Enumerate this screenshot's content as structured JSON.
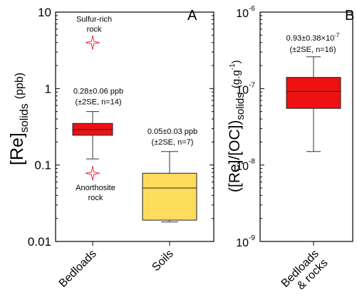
{
  "chart_data": [
    {
      "panel": "A",
      "type": "box",
      "y_scale": "log",
      "ylim": [
        0.01,
        10
      ],
      "yticks": [
        0.01,
        0.1,
        1,
        10
      ],
      "ytick_labels": [
        "0.01",
        "0.1",
        "1",
        "10"
      ],
      "ylabel": {
        "main": "[Re]",
        "sub": "solids",
        "unit": "(ppb)"
      },
      "categories": [
        "Bedloads",
        "Soils"
      ],
      "boxes": [
        {
          "category": "Bedloads",
          "color": "#ee1111",
          "whisker_low": 0.12,
          "q1": 0.245,
          "median": 0.29,
          "q3": 0.35,
          "whisker_high": 0.5,
          "annotation": [
            "0.28±0.06 ppb",
            "(±2SE, n=14)"
          ]
        },
        {
          "category": "Soils",
          "color": "#fddc5c",
          "whisker_low": 0.018,
          "q1": 0.019,
          "median": 0.05,
          "q3": 0.078,
          "whisker_high": 0.15,
          "annotation": [
            "0.05±0.03 ppb",
            "(±2SE, n=7)"
          ]
        }
      ],
      "points": [
        {
          "label": [
            "Sulfur-rich",
            "rock"
          ],
          "category": "Bedloads",
          "value": 4.0,
          "marker": "star-outline",
          "color": "#e8333a"
        },
        {
          "label": [
            "Anorthosite",
            "rock"
          ],
          "category": "Bedloads",
          "value": 0.078,
          "marker": "star-outline",
          "color": "#e8333a"
        }
      ]
    },
    {
      "panel": "B",
      "type": "box",
      "y_scale": "log",
      "ylim": [
        1e-09,
        1e-06
      ],
      "yticks": [
        1e-09,
        1e-08,
        1e-07,
        1e-06
      ],
      "ytick_labels": [
        {
          "base": "10",
          "exp": "-9"
        },
        {
          "base": "10",
          "exp": "-8"
        },
        {
          "base": "10",
          "exp": "-7"
        },
        {
          "base": "10",
          "exp": "-6"
        }
      ],
      "ylabel": {
        "main": "([Re]/[OC])",
        "sub": "solids",
        "unit": "(g.g",
        "unit_exp": "-1",
        "unit_close": ")"
      },
      "categories": [
        [
          "Bedloads",
          "& rocks"
        ]
      ],
      "boxes": [
        {
          "category": "Bedloads & rocks",
          "color": "#ee1111",
          "whisker_low": 1.5e-08,
          "q1": 5.5e-08,
          "median": 9.2e-08,
          "q3": 1.4e-07,
          "whisker_high": 2.6e-07,
          "annotation": {
            "line1": "0.93±0.38×10",
            "line1_exp": "-7",
            "line2": "(±2SE, n=16)"
          }
        }
      ]
    }
  ]
}
